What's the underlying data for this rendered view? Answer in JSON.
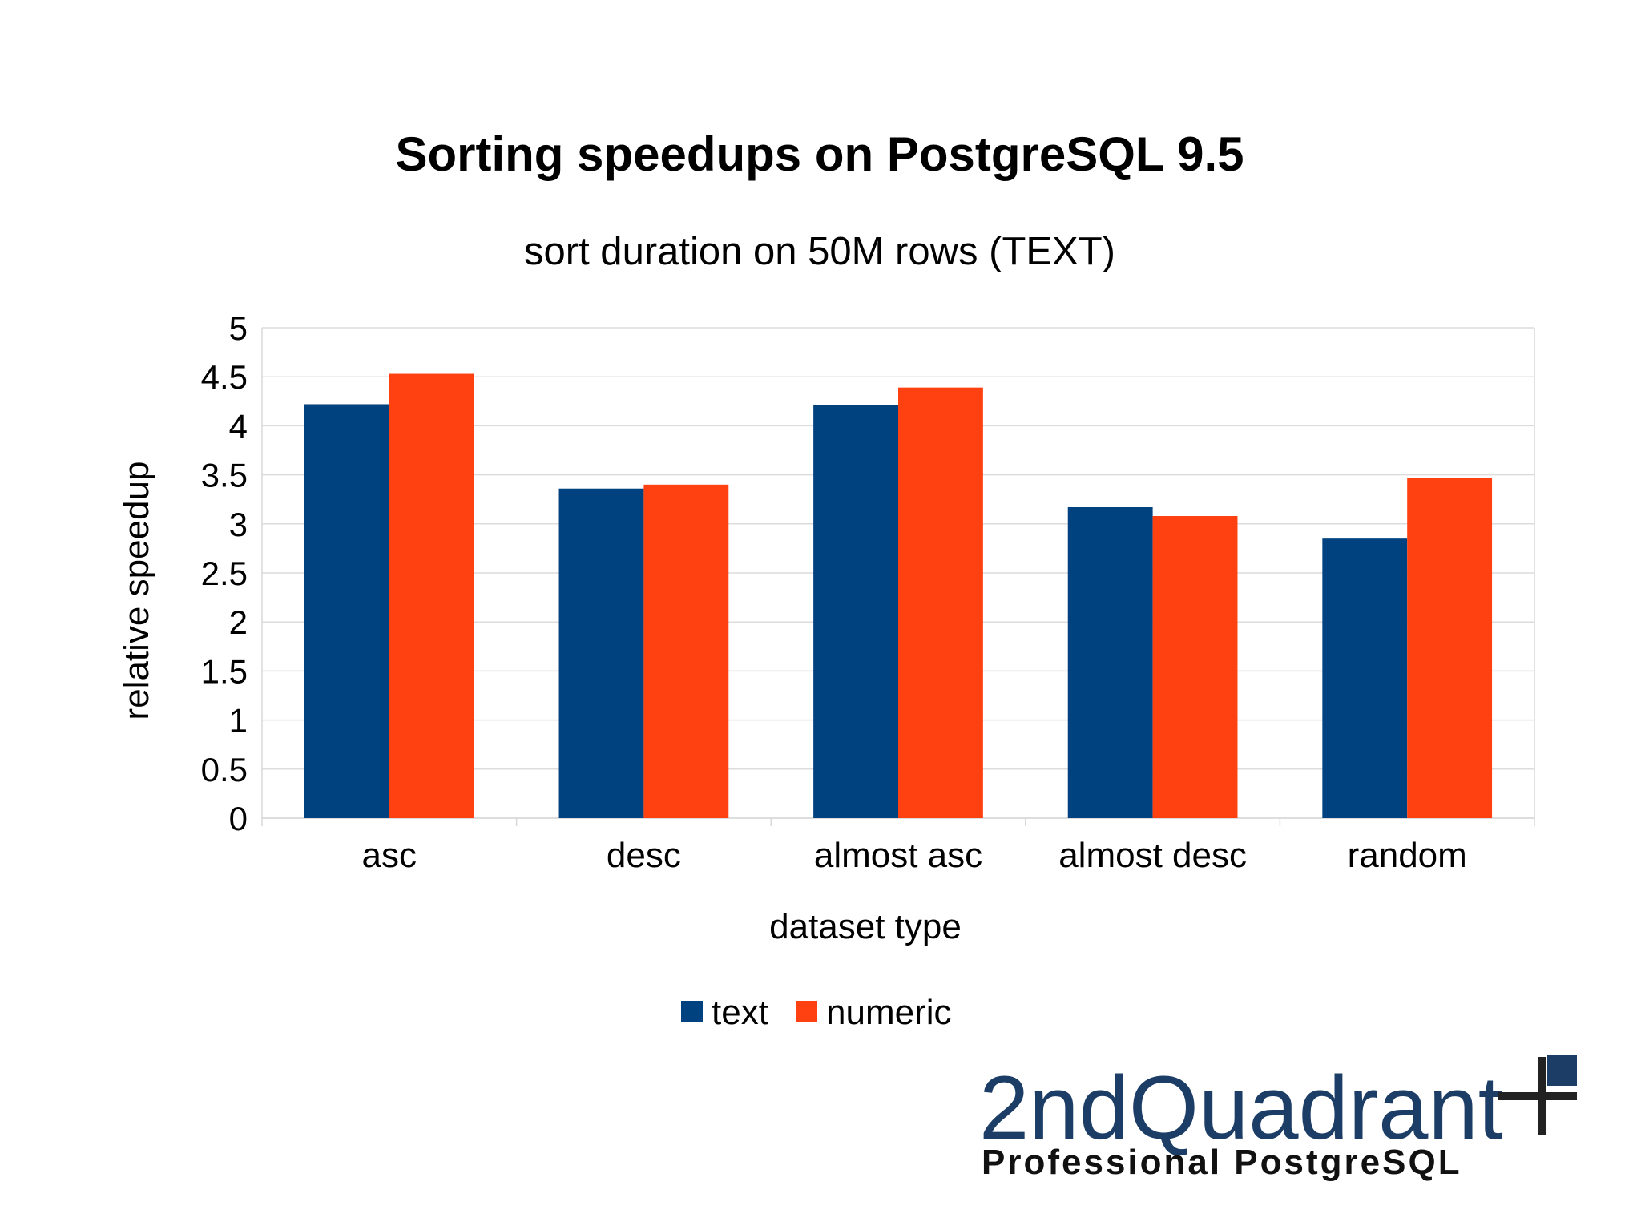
{
  "colors": {
    "text_series": "#00427f",
    "numeric_series": "#ff4011",
    "logo_blue": "#1b3d66",
    "logo_dark": "#222222"
  },
  "chart_data": {
    "type": "bar",
    "title": "Sorting speedups on PostgreSQL 9.5",
    "subtitle": "sort duration on 50M rows (TEXT)",
    "xlabel": "dataset type",
    "ylabel": "relative speedup",
    "categories": [
      "asc",
      "desc",
      "almost asc",
      "almost desc",
      "random"
    ],
    "series": [
      {
        "name": "text",
        "color": "#00427f",
        "values": [
          4.22,
          3.36,
          4.21,
          3.17,
          2.85
        ]
      },
      {
        "name": "numeric",
        "color": "#ff4011",
        "values": [
          4.53,
          3.4,
          4.39,
          3.08,
          3.47
        ]
      }
    ],
    "ylim": [
      0,
      5
    ],
    "yticks": [
      0,
      0.5,
      1,
      1.5,
      2,
      2.5,
      3,
      3.5,
      4,
      4.5,
      5
    ],
    "ytick_labels": [
      "0",
      "0.5",
      "1",
      "1.5",
      "2",
      "2.5",
      "3",
      "3.5",
      "4",
      "4.5",
      "5"
    ],
    "grid": true,
    "legend_position": "bottom"
  },
  "logo": {
    "name": "2ndQuadrant",
    "tagline": "Professional PostgreSQL"
  }
}
